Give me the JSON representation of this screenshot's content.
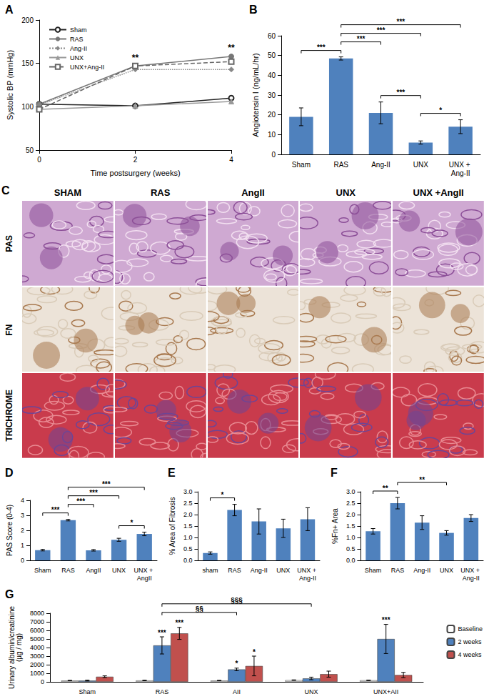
{
  "chart_data": [
    {
      "type": "line",
      "title": "A",
      "x_label": "Time postsurgery (weeks)",
      "y_label": "Systolic BP (mmHg)",
      "x": [
        0,
        2,
        4
      ],
      "xlim": [
        0,
        4
      ],
      "xticks": [
        0,
        2,
        4
      ],
      "ylim": [
        50,
        200
      ],
      "yticks": [
        50,
        100,
        150,
        200
      ],
      "legend": "upper left",
      "series": [
        {
          "name": "Sham",
          "color": "#222222",
          "marker": "emptyCircle",
          "line_style": "solid",
          "values": [
            103,
            101,
            110
          ]
        },
        {
          "name": "RAS",
          "color": "#777777",
          "marker": "circle",
          "line_style": "solid",
          "values": [
            103,
            147,
            158
          ]
        },
        {
          "name": "Ang-II",
          "color": "#888888",
          "marker": "diamond",
          "line_style": "dotted",
          "values": [
            102,
            143,
            143
          ]
        },
        {
          "name": "UNX",
          "color": "#999999",
          "marker": "triangle",
          "line_style": "solid",
          "values": [
            97,
            101,
            106
          ]
        },
        {
          "name": "UNX+Ang-II",
          "color": "#666666",
          "marker": "emptyRect",
          "line_style": "dashed",
          "values": [
            97,
            147,
            152
          ]
        }
      ],
      "annotations": [
        {
          "x": 2,
          "y": 156,
          "text": "**"
        },
        {
          "x": 4,
          "y": 168,
          "text": "**"
        }
      ]
    },
    {
      "type": "bar",
      "title": "B",
      "y_label": "Angiotensin I (ng/mL/hr)",
      "categories": [
        "Sham",
        "RAS",
        "Ang-II",
        "UNX",
        "UNX + Ang-II"
      ],
      "values": [
        19,
        48.5,
        21,
        6,
        14
      ],
      "errors": [
        4.5,
        0.8,
        5.5,
        0.8,
        3.5
      ],
      "color": "#4f81bd",
      "ylim": [
        0,
        60
      ],
      "yticks": [
        0,
        10,
        20,
        30,
        40,
        50,
        60
      ],
      "annotations": [
        {
          "from": "Sham",
          "to": "RAS",
          "text": "***"
        },
        {
          "from": "RAS",
          "to": "Ang-II",
          "text": "***"
        },
        {
          "from": "RAS",
          "to": "UNX",
          "text": "***"
        },
        {
          "from": "RAS",
          "to": "UNX + Ang-II",
          "text": "***"
        },
        {
          "from": "Ang-II",
          "to": "UNX",
          "text": "***"
        },
        {
          "from": "UNX",
          "to": "UNX + Ang-II",
          "text": "*"
        }
      ]
    },
    {
      "type": "bar",
      "title": "D",
      "y_label": "PAS Score (0-4)",
      "categories": [
        "Sham",
        "RAS",
        "AngII",
        "UNX",
        "UNX + AngII"
      ],
      "values": [
        0.68,
        2.68,
        0.67,
        1.37,
        1.76
      ],
      "errors": [
        0.05,
        0.05,
        0.05,
        0.1,
        0.12
      ],
      "color": "#4f81bd",
      "ylim": [
        0,
        4
      ],
      "yticks": [
        0,
        1,
        2,
        3,
        4
      ],
      "annotations": [
        {
          "from": "Sham",
          "to": "RAS",
          "text": "***"
        },
        {
          "from": "RAS",
          "to": "AngII",
          "text": "***"
        },
        {
          "from": "RAS",
          "to": "UNX",
          "text": "***"
        },
        {
          "from": "RAS",
          "to": "UNX + AngII",
          "text": "***"
        },
        {
          "from": "UNX",
          "to": "UNX + AngII",
          "text": "*"
        }
      ]
    },
    {
      "type": "bar",
      "title": "E",
      "y_label": "% Area of Fibrosis",
      "categories": [
        "sham",
        "RAS",
        "Ang-II",
        "UNX",
        "UNX + Ang-II"
      ],
      "values": [
        0.32,
        2.2,
        1.7,
        1.4,
        1.8
      ],
      "errors": [
        0.05,
        0.25,
        0.55,
        0.4,
        0.5
      ],
      "color": "#4f81bd",
      "ylim": [
        0,
        3
      ],
      "yticks": [
        {
          "value": 0,
          "label": "0.0"
        },
        0.5,
        {
          "value": 1,
          "label": "1.0"
        },
        1.5,
        {
          "value": 2,
          "label": "2.0"
        },
        2.5,
        {
          "value": 3,
          "label": "3.0"
        }
      ],
      "annotations": [
        {
          "from": "sham",
          "to": "RAS",
          "text": "*"
        }
      ]
    },
    {
      "type": "bar",
      "title": "F",
      "y_label": "%Fn+ Area",
      "categories": [
        "Sham",
        "RAS",
        "Ang-II",
        "UNX",
        "UNX + Ang-II"
      ],
      "values": [
        1.27,
        2.5,
        1.65,
        1.2,
        1.85
      ],
      "errors": [
        0.12,
        0.25,
        0.3,
        0.1,
        0.15
      ],
      "color": "#4f81bd",
      "ylim": [
        0,
        3
      ],
      "yticks": [
        {
          "value": 0,
          "label": "0.0"
        },
        0.5,
        {
          "value": 1,
          "label": "1.0"
        },
        1.5,
        {
          "value": 2,
          "label": "2.0"
        },
        2.5,
        {
          "value": 3,
          "label": "3.0"
        }
      ],
      "annotations": [
        {
          "from": "Sham",
          "to": "RAS",
          "text": "**"
        },
        {
          "from": "RAS",
          "to": "UNX",
          "text": "**"
        }
      ]
    },
    {
      "type": "bar",
      "title": "G",
      "y_label": "Urinary albumin/creatinine\n(µg / mg)",
      "categories": [
        "Sham",
        "RAS",
        "AII",
        "UNX",
        "UNX+AII"
      ],
      "legend": "right",
      "series": [
        {
          "name": "Baseline",
          "color": "#ffffff",
          "values": [
            150,
            160,
            150,
            200,
            180
          ],
          "errors": [
            30,
            30,
            30,
            30,
            30
          ],
          "marks": [
            null,
            null,
            null,
            null,
            null
          ]
        },
        {
          "name": "2 weeks",
          "color": "#4f81bd",
          "values": [
            150,
            4250,
            1450,
            400,
            5000
          ],
          "errors": [
            50,
            1000,
            150,
            150,
            1700
          ],
          "marks": [
            null,
            "***",
            "*",
            null,
            "***"
          ]
        },
        {
          "name": "4 weeks",
          "color": "#c0504d",
          "values": [
            600,
            5650,
            1850,
            900,
            800
          ],
          "errors": [
            100,
            700,
            1150,
            350,
            300
          ],
          "marks": [
            null,
            "***",
            "*",
            null,
            null
          ]
        }
      ],
      "ylim": [
        0,
        8000
      ],
      "yticks": [
        0,
        1000,
        2000,
        3000,
        4000,
        5000,
        6000,
        7000,
        8000
      ],
      "annotations": [
        {
          "from": "RAS",
          "to": "AII",
          "text": "§§"
        },
        {
          "from": "RAS",
          "to": "UNX",
          "text": "§§§"
        }
      ]
    }
  ],
  "image_panel": {
    "title": "C",
    "columns": [
      "SHAM",
      "RAS",
      "AngII",
      "UNX",
      "UNX +AngII"
    ],
    "rows": [
      "PAS",
      "FN",
      "TRICHROME"
    ]
  }
}
